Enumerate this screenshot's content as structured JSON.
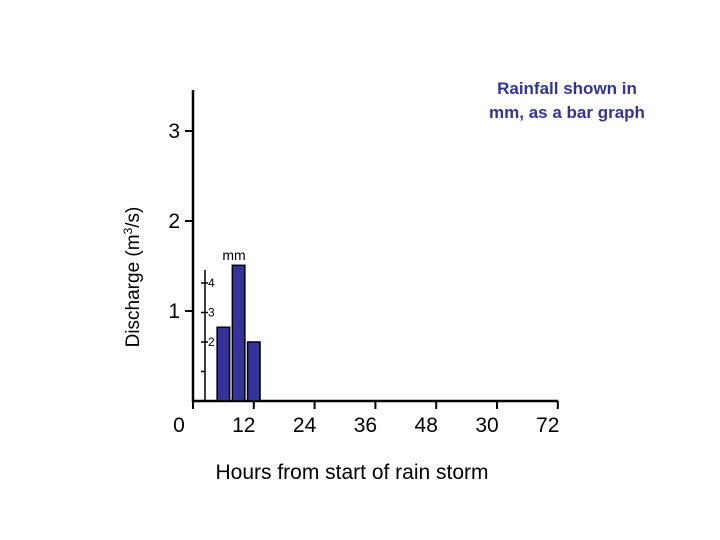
{
  "chart_data": {
    "type": "bar",
    "title": "",
    "xlabel": "Hours from start of rain storm",
    "ylabel": "Discharge (m",
    "ylabel_sup": "3",
    "ylabel_end": "/s)",
    "x_tick_labels": [
      "0",
      "12",
      "24",
      "36",
      "48",
      "30",
      "72"
    ],
    "y_ticks": [
      1,
      2,
      3
    ],
    "ylim": [
      0,
      3.4
    ],
    "discharge_series": [],
    "rainfall": {
      "unit_label": "mm",
      "axis_ticks": [
        2,
        3,
        4
      ],
      "bar_hours": [
        6,
        9,
        12
      ],
      "values_mm": [
        2.5,
        4.6,
        2.0
      ],
      "color": "#333399"
    },
    "annotation": {
      "line1": "Rainfall shown in",
      "line2": "mm, as a bar graph"
    },
    "legend": "none",
    "grid": false
  }
}
